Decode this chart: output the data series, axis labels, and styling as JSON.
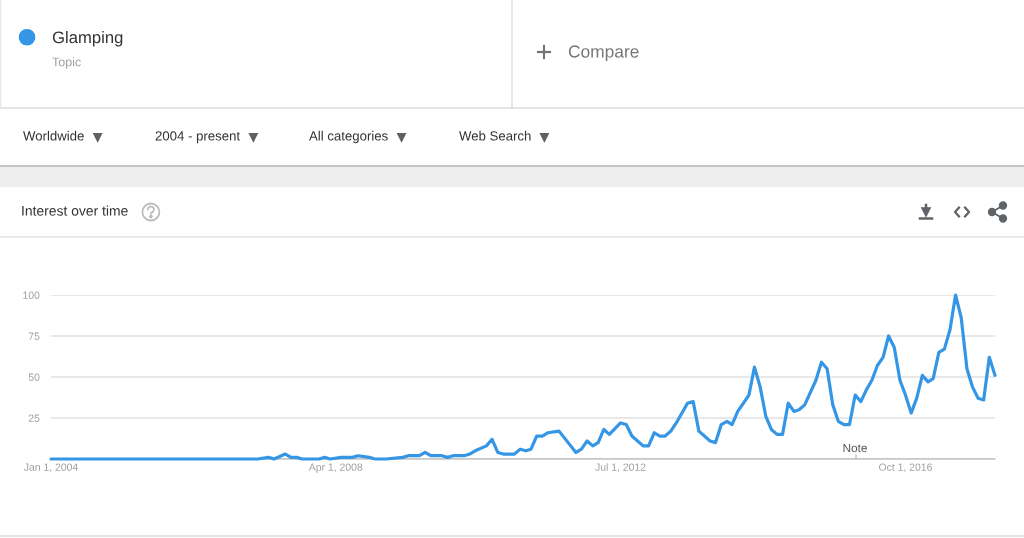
{
  "chart_data": {
    "type": "line",
    "title": "Interest over time",
    "series": [
      {
        "name": "Glamping",
        "color": "#3596e6",
        "x": [
          "2004-01",
          "2007-02",
          "2007-04",
          "2007-05",
          "2007-07",
          "2007-08",
          "2007-09",
          "2007-10",
          "2008-01",
          "2008-02",
          "2008-03",
          "2008-05",
          "2008-07",
          "2008-08",
          "2008-10",
          "2008-11",
          "2009-01",
          "2009-04",
          "2009-05",
          "2009-07",
          "2009-08",
          "2009-09",
          "2009-11",
          "2009-12",
          "2010-01",
          "2010-03",
          "2010-04",
          "2010-05",
          "2010-07",
          "2010-08",
          "2010-09",
          "2010-10",
          "2010-12",
          "2011-01",
          "2011-02",
          "2011-03",
          "2011-04",
          "2011-05",
          "2011-06",
          "2011-08",
          "2011-11",
          "2011-12",
          "2012-01",
          "2012-02",
          "2012-03",
          "2012-04",
          "2012-05",
          "2012-07",
          "2012-08",
          "2012-09",
          "2012-11",
          "2012-12",
          "2013-01",
          "2013-02",
          "2013-03",
          "2013-04",
          "2013-05",
          "2013-07",
          "2013-08",
          "2013-09",
          "2013-10",
          "2013-11",
          "2013-12",
          "2014-01",
          "2014-02",
          "2014-03",
          "2014-04",
          "2014-06",
          "2014-07",
          "2014-08",
          "2014-09",
          "2014-10",
          "2014-11",
          "2014-12",
          "2015-01",
          "2015-02",
          "2015-03",
          "2015-04",
          "2015-06",
          "2015-07",
          "2015-08",
          "2015-09",
          "2015-10",
          "2015-11",
          "2015-12",
          "2016-01",
          "2016-02",
          "2016-03",
          "2016-04",
          "2016-05",
          "2016-06",
          "2016-07",
          "2016-08",
          "2016-09",
          "2016-10",
          "2016-11",
          "2016-12",
          "2017-01",
          "2017-02",
          "2017-03",
          "2017-04",
          "2017-05",
          "2017-06",
          "2017-07",
          "2017-08",
          "2017-09",
          "2017-10",
          "2017-11",
          "2017-12",
          "2018-01",
          "2018-02"
        ],
        "values": [
          0,
          0,
          1,
          0,
          3,
          1,
          1,
          0,
          0,
          1,
          0,
          1,
          1,
          2,
          1,
          0,
          0,
          1,
          2,
          2,
          4,
          2,
          2,
          1,
          2,
          2,
          3,
          5,
          8,
          12,
          4,
          3,
          3,
          6,
          5,
          6,
          14,
          14,
          16,
          17,
          4,
          6,
          11,
          8,
          10,
          18,
          15,
          22,
          21,
          14,
          8,
          8,
          16,
          14,
          14,
          17,
          22,
          34,
          35,
          17,
          14,
          11,
          10,
          21,
          23,
          21,
          29,
          39,
          56,
          44,
          26,
          18,
          15,
          15,
          34,
          29,
          30,
          33,
          48,
          59,
          55,
          33,
          23,
          21,
          21,
          39,
          35,
          42,
          48,
          57,
          62,
          75,
          68,
          48,
          39,
          28,
          37,
          51,
          47,
          49,
          65,
          67,
          79,
          100,
          86,
          55,
          44,
          37,
          36,
          62,
          51
        ]
      }
    ],
    "xlim": [
      "2004-01",
      "2018-02"
    ],
    "xticks": [
      {
        "value": "2004-01-01",
        "label": "Jan 1, 2004"
      },
      {
        "value": "2008-04-01",
        "label": "Apr 1, 2008"
      },
      {
        "value": "2012-07-01",
        "label": "Jul 1, 2012"
      },
      {
        "value": "2016-10-01",
        "label": "Oct 1, 2016"
      }
    ],
    "ylim": [
      0,
      100
    ],
    "yticks": [
      {
        "value": 0,
        "label": null
      },
      25,
      50,
      75,
      100
    ],
    "grid": "y",
    "legend": "top left",
    "annotations": [
      "Topic",
      "Compare",
      "Worldwide",
      "2004 - present",
      "All categories",
      "Web Search",
      "Note"
    ]
  }
}
